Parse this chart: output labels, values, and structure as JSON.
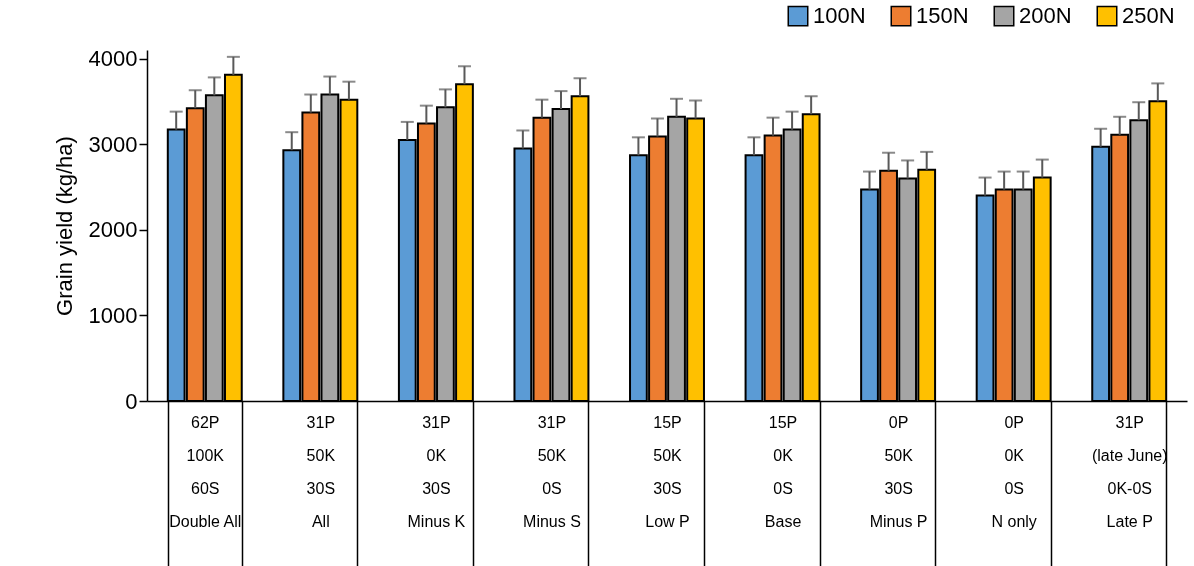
{
  "chart_data": {
    "type": "bar",
    "ylabel": "Grain yield (kg/ha)",
    "categories": [
      "62P\n100K\n60S\nDouble All",
      "31P\n50K\n30S\nAll",
      "31P\n0K\n30S\nMinus K",
      "31P\n50K\n0S\nMinus S",
      "15P\n50K\n30S\nLow P",
      "15P\n0K\n0S\nBase",
      "0P\n50K\n30S\nMinus P",
      "0P\n0K\n0S\nN only",
      "31P\n(late June)\n0K-0S\nLate P"
    ],
    "series": [
      {
        "name": "100N",
        "color": "#5b9bd5",
        "values": [
          3170,
          2930,
          3050,
          2950,
          2870,
          2870,
          2470,
          2400,
          2970
        ],
        "errors": [
          [
            3170,
            3380
          ],
          [
            2930,
            3140
          ],
          [
            3050,
            3260
          ],
          [
            2950,
            3160
          ],
          [
            2870,
            3080
          ],
          [
            2870,
            3080
          ],
          [
            2470,
            2680
          ],
          [
            2400,
            2610
          ],
          [
            2970,
            3180
          ]
        ]
      },
      {
        "name": "150N",
        "color": "#ed7d31",
        "values": [
          3420,
          3370,
          3240,
          3310,
          3090,
          3100,
          2690,
          2470,
          3110
        ],
        "errors": [
          [
            3420,
            3630
          ],
          [
            3370,
            3580
          ],
          [
            3240,
            3450
          ],
          [
            3310,
            3520
          ],
          [
            3090,
            3300
          ],
          [
            3100,
            3310
          ],
          [
            2690,
            2900
          ],
          [
            2470,
            2680
          ],
          [
            3110,
            3320
          ]
        ]
      },
      {
        "name": "200N",
        "color": "#a5a5a5",
        "values": [
          3570,
          3580,
          3430,
          3410,
          3320,
          3170,
          2600,
          2470,
          3280
        ],
        "errors": [
          [
            3570,
            3780
          ],
          [
            3580,
            3790
          ],
          [
            3430,
            3640
          ],
          [
            3410,
            3620
          ],
          [
            3320,
            3530
          ],
          [
            3170,
            3380
          ],
          [
            2600,
            2810
          ],
          [
            2470,
            2680
          ],
          [
            3280,
            3490
          ]
        ]
      },
      {
        "name": "250N",
        "color": "#ffc000",
        "values": [
          3810,
          3520,
          3700,
          3560,
          3300,
          3350,
          2700,
          2610,
          3500
        ],
        "errors": [
          [
            3810,
            4020
          ],
          [
            3520,
            3730
          ],
          [
            3700,
            3910
          ],
          [
            3560,
            3770
          ],
          [
            3300,
            3510
          ],
          [
            3350,
            3560
          ],
          [
            2700,
            2910
          ],
          [
            2610,
            2820
          ],
          [
            3500,
            3710
          ]
        ]
      }
    ],
    "ylim": [
      0,
      4100
    ],
    "yticks": [
      0,
      1000,
      2000,
      3000,
      4000
    ],
    "grid": false,
    "legend": "top right"
  }
}
